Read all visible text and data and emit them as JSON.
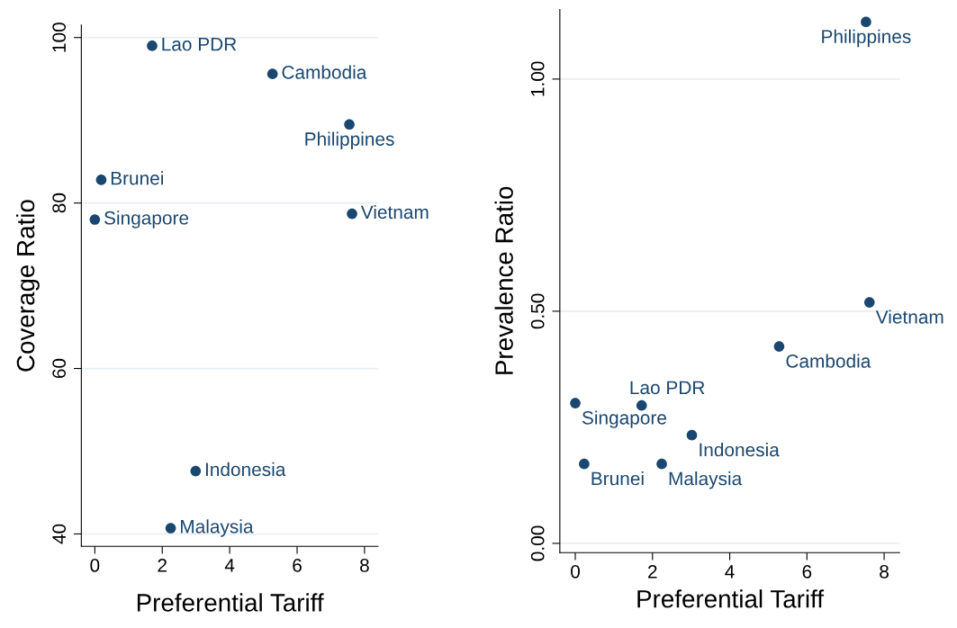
{
  "chart_data": [
    {
      "type": "scatter",
      "xlabel": "Preferential Tariff",
      "ylabel": "Coverage Ratio",
      "color": "#1a476f",
      "marker": "circle",
      "grid": "y",
      "legend": false,
      "x": [
        1.7,
        5.27,
        7.55,
        0.19,
        0.0,
        7.63,
        2.99,
        2.25
      ],
      "values": [
        99.0,
        95.6,
        89.5,
        82.8,
        78.0,
        78.7,
        47.6,
        40.7
      ],
      "xlim": [
        -0.4,
        8.4
      ],
      "xticks": [
        0,
        2,
        4,
        6,
        8
      ],
      "ylim": [
        38.5,
        101.5
      ],
      "yticks": [
        40,
        60,
        80,
        100
      ],
      "annotations": [
        {
          "text": "Lao PDR",
          "x": 1.7,
          "y": 99.0
        },
        {
          "text": "Cambodia",
          "x": 5.27,
          "y": 95.6
        },
        {
          "text": "Philippines",
          "x": 7.55,
          "y": 89.5
        },
        {
          "text": "Brunei",
          "x": 0.19,
          "y": 82.8
        },
        {
          "text": "Singapore",
          "x": 0.0,
          "y": 78.0
        },
        {
          "text": "Vietnam",
          "x": 7.63,
          "y": 78.7
        },
        {
          "text": "Indonesia",
          "x": 2.99,
          "y": 47.6
        },
        {
          "text": "Malaysia",
          "x": 2.25,
          "y": 40.7
        }
      ]
    },
    {
      "type": "scatter",
      "xlabel": "Preferential Tariff",
      "ylabel": "Prevalence Ratio",
      "color": "#1a476f",
      "marker": "circle",
      "grid": "y",
      "legend": false,
      "x": [
        7.53,
        7.62,
        5.28,
        1.72,
        0.0,
        3.02,
        0.23,
        2.24
      ],
      "values": [
        1.123,
        0.519,
        0.424,
        0.297,
        0.302,
        0.233,
        0.171,
        0.171
      ],
      "xlim": [
        -0.4,
        8.4
      ],
      "xticks": [
        0,
        2,
        4,
        6,
        8
      ],
      "ylim": [
        -0.02,
        1.15
      ],
      "yticks": [
        {
          "value": 0,
          "label": "0.00"
        },
        {
          "value": 0.5,
          "label": "0.50"
        },
        {
          "value": 1,
          "label": "1.00"
        }
      ],
      "annotations": [
        {
          "text": "Philippines",
          "x": 7.53,
          "y": 1.123
        },
        {
          "text": "Vietnam",
          "x": 7.62,
          "y": 0.519
        },
        {
          "text": "Cambodia",
          "x": 5.28,
          "y": 0.424
        },
        {
          "text": "Lao PDR",
          "x": 1.72,
          "y": 0.297
        },
        {
          "text": "Singapore",
          "x": 0.0,
          "y": 0.302
        },
        {
          "text": "Indonesia",
          "x": 3.02,
          "y": 0.233
        },
        {
          "text": "Brunei",
          "x": 0.23,
          "y": 0.171
        },
        {
          "text": "Malaysia",
          "x": 2.24,
          "y": 0.171
        }
      ]
    }
  ]
}
